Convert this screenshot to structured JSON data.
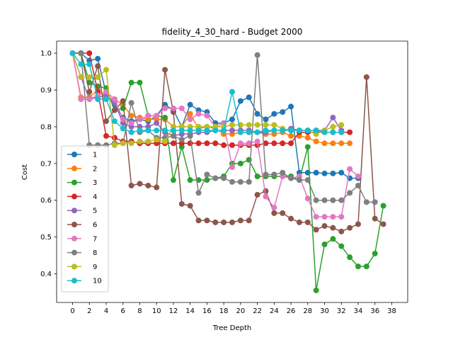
{
  "chart_data": {
    "type": "line",
    "title": "fidelity_4_30_hard - Budget  2000",
    "xlabel": "Tree Depth",
    "ylabel": "Cost",
    "xlim": [
      -1.9,
      39.9
    ],
    "ylim": [
      0.322,
      1.033
    ],
    "xticks": [
      0,
      2,
      4,
      6,
      8,
      10,
      12,
      14,
      16,
      18,
      20,
      22,
      24,
      26,
      28,
      30,
      32,
      34,
      36,
      38
    ],
    "yticks": [
      0.4,
      0.5,
      0.6,
      0.7,
      0.8,
      0.9,
      1.0
    ],
    "ytick_labels": [
      "0.4",
      "0.5",
      "0.6",
      "0.7",
      "0.8",
      "0.9",
      "1.0"
    ],
    "legend_placement": "lower left",
    "grid": false,
    "series": [
      {
        "name": "1",
        "color": "#1f77b4",
        "values": [
          1.0,
          1.0,
          0.98,
          0.985,
          0.89,
          0.86,
          0.825,
          0.815,
          0.82,
          0.815,
          0.83,
          0.86,
          0.845,
          0.8,
          0.86,
          0.845,
          0.84,
          0.81,
          0.81,
          0.82,
          0.87,
          0.88,
          0.835,
          0.82,
          0.835,
          0.84,
          0.855,
          0.675,
          0.675,
          0.675,
          0.673,
          0.673,
          0.675,
          0.66,
          0.66
        ]
      },
      {
        "name": "2",
        "color": "#ff7f0e",
        "values": [
          1.0,
          0.88,
          0.88,
          0.9,
          0.88,
          0.875,
          0.86,
          0.83,
          0.825,
          0.82,
          0.82,
          0.82,
          0.8,
          0.8,
          0.835,
          0.795,
          0.8,
          0.795,
          0.78,
          0.78,
          0.785,
          0.785,
          0.785,
          0.78,
          0.78,
          0.785,
          0.775,
          0.775,
          0.77,
          0.76,
          0.755,
          0.755,
          0.755,
          0.755
        ]
      },
      {
        "name": "3",
        "color": "#2ca02c",
        "values": [
          1.0,
          1.0,
          0.92,
          0.91,
          0.905,
          0.845,
          0.85,
          0.92,
          0.92,
          0.83,
          0.83,
          0.825,
          0.655,
          0.745,
          0.655,
          0.655,
          0.655,
          0.66,
          0.665,
          0.7,
          0.7,
          0.71,
          0.665,
          0.665,
          0.665,
          0.665,
          0.665,
          0.655,
          0.745,
          0.355,
          0.48,
          0.495,
          0.475,
          0.445,
          0.42,
          0.42,
          0.455,
          0.585
        ]
      },
      {
        "name": "4",
        "color": "#d62728",
        "values": [
          1.0,
          1.0,
          1.0,
          0.895,
          0.775,
          0.77,
          0.76,
          0.76,
          0.755,
          0.755,
          0.755,
          0.755,
          0.755,
          0.755,
          0.755,
          0.755,
          0.755,
          0.755,
          0.75,
          0.75,
          0.75,
          0.75,
          0.75,
          0.755,
          0.755,
          0.755,
          0.755,
          0.785,
          0.785,
          0.785,
          0.785,
          0.785,
          0.785,
          0.785
        ]
      },
      {
        "name": "5",
        "color": "#9467bd",
        "values": [
          1.0,
          0.935,
          0.875,
          0.88,
          0.885,
          0.865,
          0.81,
          0.8,
          0.8,
          0.8,
          0.81,
          0.785,
          0.775,
          0.78,
          0.78,
          0.785,
          0.785,
          0.79,
          0.79,
          0.79,
          0.79,
          0.79,
          0.785,
          0.785,
          0.79,
          0.79,
          0.795,
          0.79,
          0.79,
          0.79,
          0.79,
          0.825,
          0.79
        ]
      },
      {
        "name": "6",
        "color": "#8c564b",
        "values": [
          1.0,
          1.0,
          0.895,
          0.965,
          0.815,
          0.845,
          0.87,
          0.64,
          0.645,
          0.64,
          0.635,
          0.955,
          0.84,
          0.59,
          0.585,
          0.545,
          0.545,
          0.54,
          0.54,
          0.54,
          0.545,
          0.545,
          0.615,
          0.625,
          0.565,
          0.565,
          0.55,
          0.54,
          0.54,
          0.52,
          0.53,
          0.525,
          0.515,
          0.525,
          0.535,
          0.935,
          0.55,
          0.535
        ]
      },
      {
        "name": "7",
        "color": "#e377c2",
        "values": [
          1.0,
          0.875,
          0.875,
          0.885,
          0.895,
          0.875,
          0.82,
          0.81,
          0.82,
          0.83,
          0.83,
          0.85,
          0.85,
          0.85,
          0.82,
          0.835,
          0.83,
          0.8,
          0.81,
          0.69,
          0.755,
          0.755,
          0.76,
          0.61,
          0.58,
          0.665,
          0.66,
          0.665,
          0.605,
          0.555,
          0.555,
          0.555,
          0.555,
          0.685,
          0.665
        ]
      },
      {
        "name": "8",
        "color": "#7f7f7f",
        "values": [
          1.0,
          1.0,
          0.75,
          0.75,
          0.75,
          0.755,
          0.755,
          0.865,
          0.785,
          0.79,
          0.77,
          0.77,
          0.775,
          0.765,
          0.775,
          0.62,
          0.67,
          0.66,
          0.66,
          0.65,
          0.65,
          0.65,
          0.995,
          0.67,
          0.67,
          0.675,
          0.66,
          0.655,
          0.655,
          0.6,
          0.6,
          0.6,
          0.6,
          0.62,
          0.64,
          0.595,
          0.595
        ]
      },
      {
        "name": "9",
        "color": "#bcbd22",
        "values": [
          1.0,
          0.935,
          0.935,
          0.935,
          0.955,
          0.75,
          0.755,
          0.755,
          0.76,
          0.76,
          0.765,
          0.76,
          0.8,
          0.8,
          0.8,
          0.8,
          0.8,
          0.8,
          0.8,
          0.805,
          0.805,
          0.805,
          0.805,
          0.805,
          0.805,
          0.795,
          0.79,
          0.79,
          0.79,
          0.78,
          0.79,
          0.8,
          0.805
        ]
      },
      {
        "name": "10",
        "color": "#17becf",
        "values": [
          1.0,
          0.97,
          0.97,
          0.875,
          0.875,
          0.815,
          0.795,
          0.785,
          0.79,
          0.79,
          0.79,
          0.79,
          0.79,
          0.79,
          0.79,
          0.79,
          0.79,
          0.79,
          0.79,
          0.895,
          0.785,
          0.785,
          0.785,
          0.79,
          0.79,
          0.79,
          0.79,
          0.79,
          0.79,
          0.79,
          0.785,
          0.785,
          0.785
        ]
      }
    ]
  }
}
